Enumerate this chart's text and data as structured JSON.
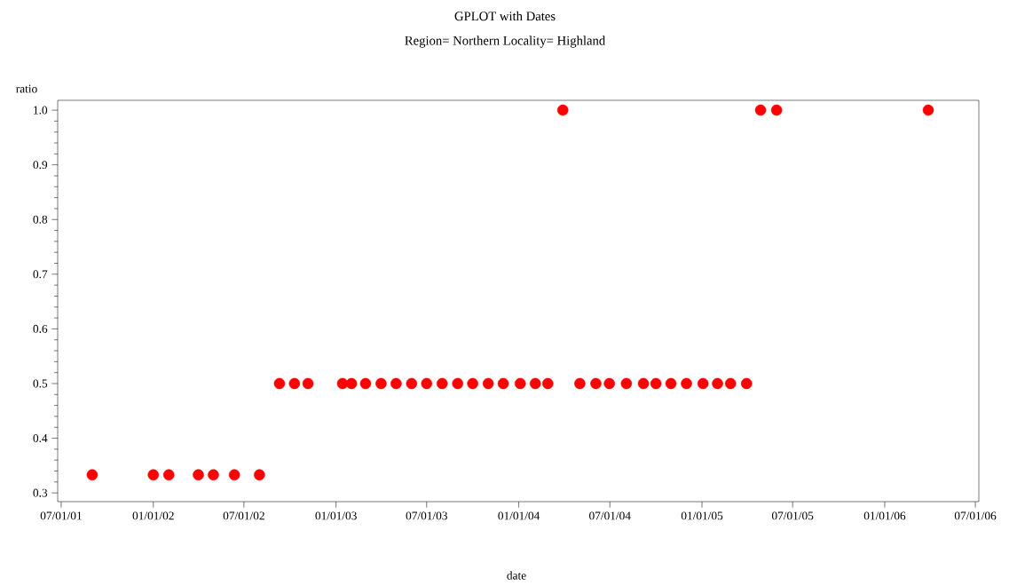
{
  "chart_data": {
    "type": "scatter",
    "title": "GPLOT with Dates",
    "subtitle": "Region= Northern Locality= Highland",
    "xlabel": "date",
    "ylabel": "ratio",
    "x": [
      "2001-09-01",
      "2002-01-01",
      "2002-02-01",
      "2002-04-01",
      "2002-05-01",
      "2002-06-12",
      "2002-08-01",
      "2002-09-10",
      "2002-10-10",
      "2002-11-06",
      "2003-01-14",
      "2003-02-01",
      "2003-03-01",
      "2003-04-01",
      "2003-05-01",
      "2003-06-01",
      "2003-07-01",
      "2003-08-01",
      "2003-09-01",
      "2003-10-01",
      "2003-11-01",
      "2003-12-01",
      "2004-01-04",
      "2004-02-03",
      "2004-02-28",
      "2004-03-29",
      "2004-05-02",
      "2004-06-03",
      "2004-06-30",
      "2004-08-03",
      "2004-09-06",
      "2004-10-01",
      "2004-10-31",
      "2004-12-01",
      "2005-01-03",
      "2005-02-01",
      "2005-02-27",
      "2005-03-31",
      "2005-04-28",
      "2005-05-30",
      "2006-03-29"
    ],
    "series": [
      {
        "color": "#ff0000",
        "values": [
          0.333,
          0.333,
          0.333,
          0.333,
          0.333,
          0.333,
          0.333,
          0.5,
          0.5,
          0.5,
          0.5,
          0.5,
          0.5,
          0.5,
          0.5,
          0.5,
          0.5,
          0.5,
          0.5,
          0.5,
          0.5,
          0.5,
          0.5,
          0.5,
          0.5,
          1.0,
          0.5,
          0.5,
          0.5,
          0.5,
          0.5,
          0.5,
          0.5,
          0.5,
          0.5,
          0.5,
          0.5,
          0.5,
          1.0,
          1.0,
          1.0
        ]
      }
    ],
    "xlim": [
      "2001-06-24",
      "2006-07-08"
    ],
    "xticks": [
      {
        "value": "2001-07-01",
        "label": "07/01/01"
      },
      {
        "value": "2002-01-01",
        "label": "01/01/02"
      },
      {
        "value": "2002-07-01",
        "label": "07/01/02"
      },
      {
        "value": "2003-01-01",
        "label": "01/01/03"
      },
      {
        "value": "2003-07-01",
        "label": "07/01/03"
      },
      {
        "value": "2004-01-01",
        "label": "01/01/04"
      },
      {
        "value": "2004-07-01",
        "label": "07/01/04"
      },
      {
        "value": "2005-01-01",
        "label": "01/01/05"
      },
      {
        "value": "2005-07-01",
        "label": "07/01/05"
      },
      {
        "value": "2006-01-01",
        "label": "01/01/06"
      },
      {
        "value": "2006-07-01",
        "label": "07/01/06"
      }
    ],
    "ylim": [
      0.284,
      1.018
    ],
    "yticks": [
      {
        "value": 0.3,
        "label": "0.3"
      },
      {
        "value": 0.4,
        "label": "0.4"
      },
      {
        "value": 0.5,
        "label": "0.5"
      },
      {
        "value": 0.6,
        "label": "0.6"
      },
      {
        "value": 0.7,
        "label": "0.7"
      },
      {
        "value": 0.8,
        "label": "0.8"
      },
      {
        "value": 0.9,
        "label": "0.9"
      },
      {
        "value": 1.0,
        "label": "1.0"
      }
    ],
    "marker": "circle"
  }
}
